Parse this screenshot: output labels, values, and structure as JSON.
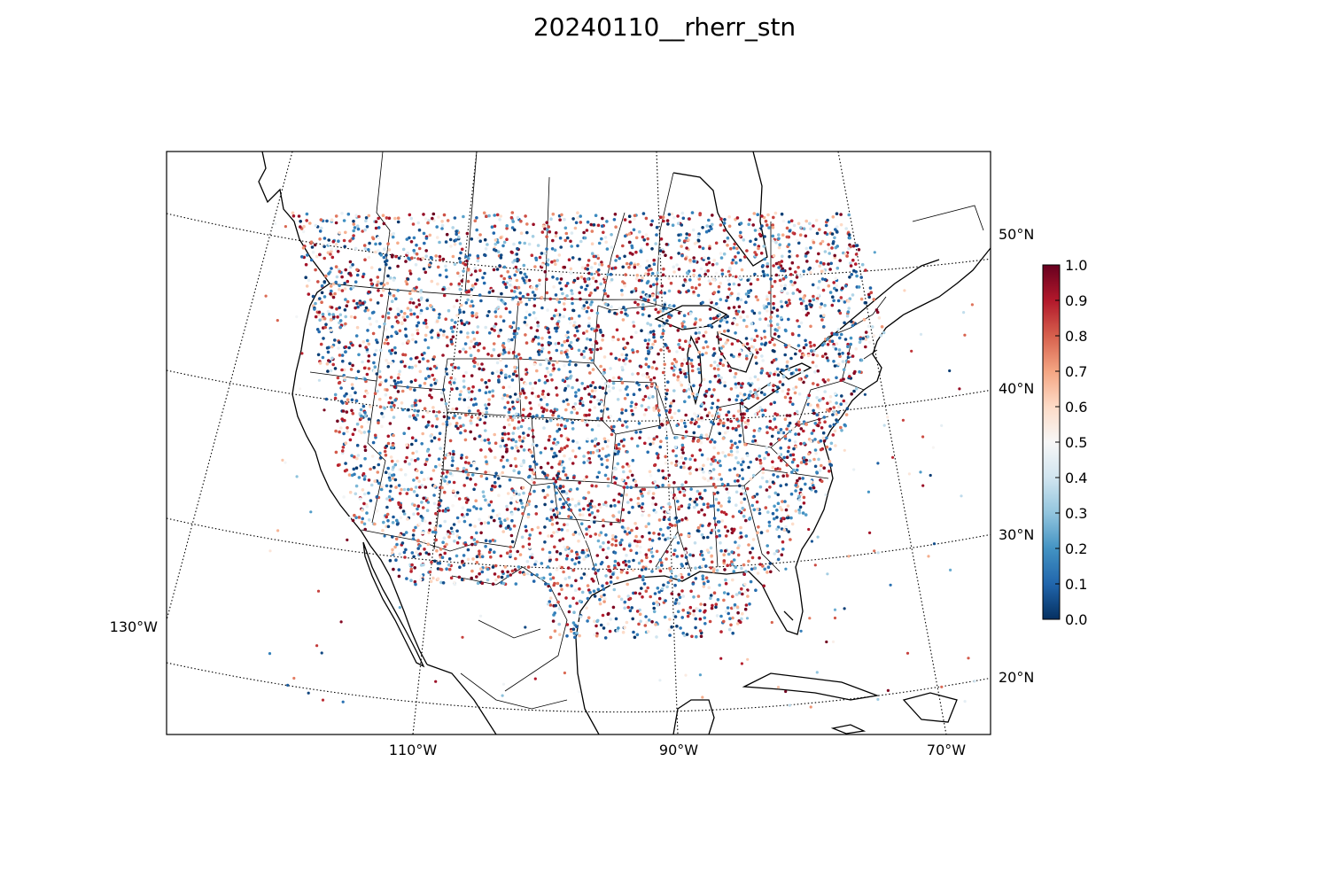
{
  "title": "20240110__rherr_stn",
  "map": {
    "projection": "lambert-conformal",
    "lat_labels": [
      "50°N",
      "40°N",
      "30°N",
      "20°N"
    ],
    "lon_labels": [
      "110°W",
      "90°W",
      "70°W"
    ],
    "left_lon_label": "130°W",
    "colors": {
      "coastline": "#000000",
      "borders": "#000000",
      "graticule": "#000000",
      "background": "#ffffff"
    },
    "value_range": [
      0.0,
      1.0
    ],
    "colormap": "RdBu_r"
  },
  "colorbar": {
    "ticks": [
      "0.0",
      "0.1",
      "0.2",
      "0.3",
      "0.4",
      "0.5",
      "0.6",
      "0.7",
      "0.8",
      "0.9",
      "1.0"
    ],
    "colors": [
      "#053061",
      "#2166ac",
      "#4393c3",
      "#92c5de",
      "#d1e5f0",
      "#f7f7f7",
      "#fddbc7",
      "#f4a582",
      "#d6604d",
      "#b2182b",
      "#67001f"
    ]
  }
}
